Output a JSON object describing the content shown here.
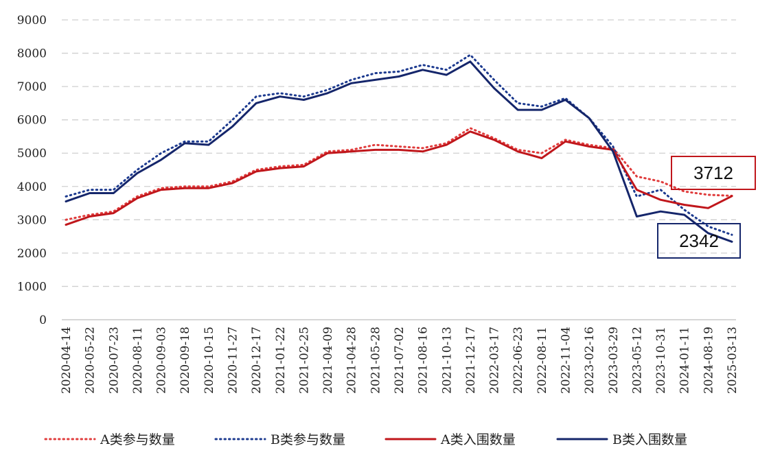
{
  "chart_data": {
    "type": "line",
    "title": "",
    "xlabel": "",
    "ylabel": "",
    "ylim": [
      0,
      9000
    ],
    "yticks": [
      0,
      1000,
      2000,
      3000,
      4000,
      5000,
      6000,
      7000,
      8000,
      9000
    ],
    "grid": true,
    "legend_position": "bottom",
    "categories": [
      "2020-04-14",
      "2020-05-22",
      "2020-07-23",
      "2020-08-11",
      "2020-09-03",
      "2020-09-18",
      "2020-10-15",
      "2020-11-27",
      "2020-12-17",
      "2021-01-22",
      "2021-02-25",
      "2021-04-09",
      "2021-04-28",
      "2021-05-28",
      "2021-07-02",
      "2021-08-16",
      "2021-10-13",
      "2021-12-17",
      "2022-03-17",
      "2022-06-23",
      "2022-08-11",
      "2022-11-04",
      "2023-02-16",
      "2023-03-29",
      "2023-05-12",
      "2023-10-31",
      "2024-01-11",
      "2024-08-19",
      "2025-03-13"
    ],
    "series": [
      {
        "name": "A类参与数量",
        "color": "#e03c3c",
        "style": "dotted",
        "values": [
          3000,
          3150,
          3250,
          3700,
          3950,
          4000,
          4000,
          4150,
          4500,
          4600,
          4650,
          5050,
          5100,
          5250,
          5200,
          5150,
          5300,
          5750,
          5450,
          5100,
          5000,
          5400,
          5250,
          5150,
          4300,
          4150,
          3850,
          3750,
          3720
        ]
      },
      {
        "name": "B类参与数量",
        "color": "#1c3a8f",
        "style": "dotted",
        "values": [
          3700,
          3900,
          3900,
          4500,
          5000,
          5350,
          5350,
          6000,
          6700,
          6800,
          6700,
          6900,
          7200,
          7400,
          7450,
          7650,
          7500,
          7950,
          7200,
          6500,
          6400,
          6650,
          6050,
          5200,
          3700,
          3900,
          3300,
          2800,
          2550
        ]
      },
      {
        "name": "A类入围数量",
        "color": "#c0161b",
        "style": "solid",
        "values": [
          2850,
          3100,
          3200,
          3650,
          3900,
          3950,
          3950,
          4100,
          4450,
          4550,
          4600,
          5000,
          5050,
          5100,
          5100,
          5050,
          5250,
          5650,
          5400,
          5050,
          4850,
          5350,
          5200,
          5100,
          3900,
          3600,
          3450,
          3350,
          3712
        ]
      },
      {
        "name": "B类入围数量",
        "color": "#15266b",
        "style": "solid",
        "values": [
          3550,
          3800,
          3800,
          4400,
          4800,
          5300,
          5250,
          5800,
          6500,
          6700,
          6600,
          6800,
          7100,
          7200,
          7300,
          7500,
          7350,
          7750,
          6950,
          6300,
          6300,
          6600,
          6050,
          5050,
          3100,
          3250,
          3150,
          2600,
          2342
        ]
      }
    ],
    "annotations": [
      {
        "label": "3712",
        "series": "A类入围数量",
        "border_color": "#c0161b"
      },
      {
        "label": "2342",
        "series": "B类入围数量",
        "border_color": "#15266b"
      }
    ]
  }
}
